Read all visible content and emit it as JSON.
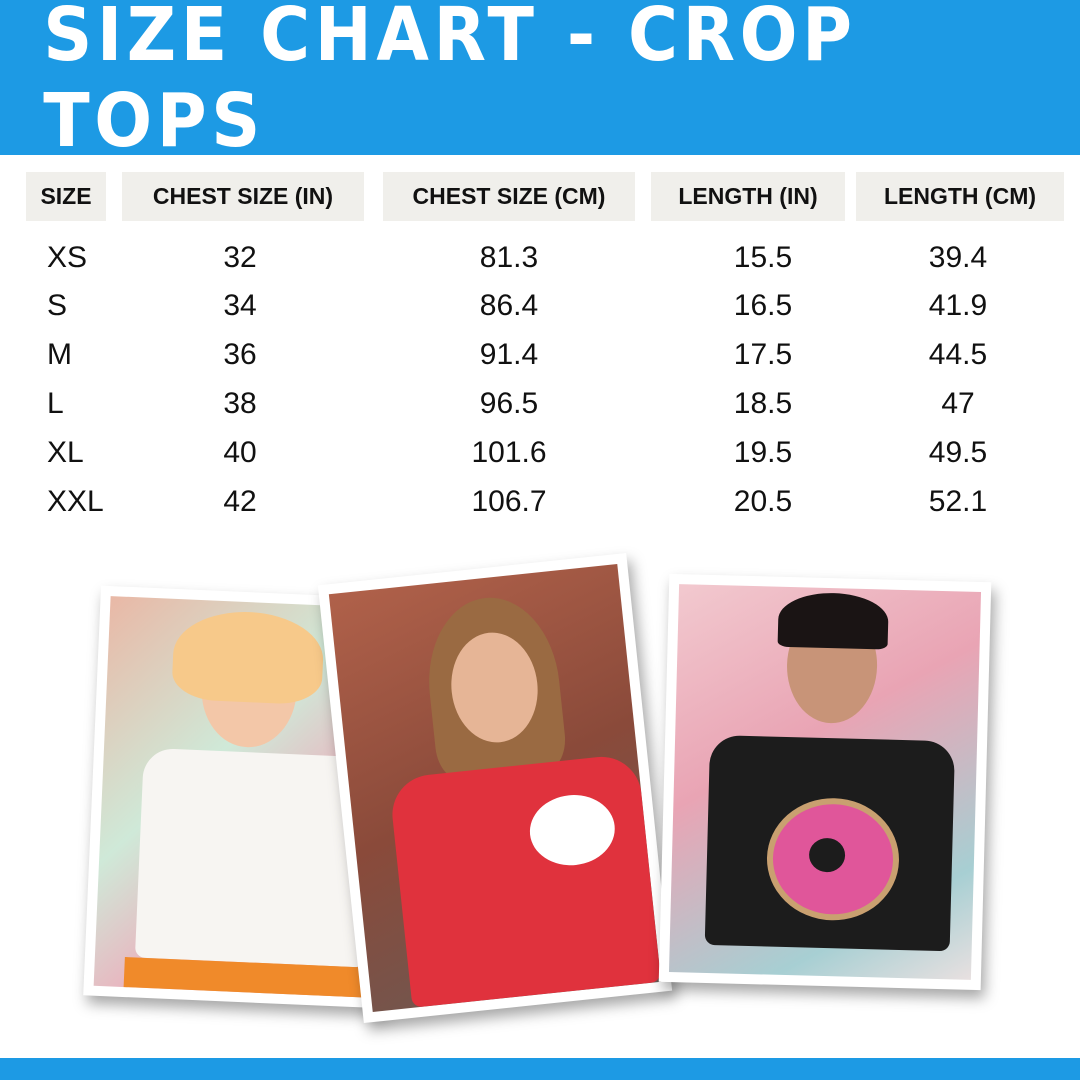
{
  "title": "SIZE CHART - CROP TOPS",
  "table": {
    "headers": [
      "SIZE",
      "CHEST SIZE (IN)",
      "CHEST SIZE (CM)",
      "LENGTH (IN)",
      "LENGTH (CM)"
    ],
    "rows": [
      [
        "XS",
        "32",
        "81.3",
        "15.5",
        "39.4"
      ],
      [
        "S",
        "34",
        "86.4",
        "16.5",
        "41.9"
      ],
      [
        "M",
        "36",
        "91.4",
        "17.5",
        "44.5"
      ],
      [
        "L",
        "38",
        "96.5",
        "18.5",
        "47"
      ],
      [
        "XL",
        "40",
        "101.6",
        "19.5",
        "49.5"
      ],
      [
        "XXL",
        "42",
        "106.7",
        "20.5",
        "52.1"
      ]
    ]
  },
  "colors": {
    "brand_blue": "#1d9ae4",
    "header_bg": "#f0efeb"
  },
  "photos": [
    {
      "name": "model-white-crop-top",
      "shirt_color": "#f7f5f2"
    },
    {
      "name": "model-red-crop-top",
      "shirt_color": "#e0323d"
    },
    {
      "name": "model-black-crop-top",
      "shirt_color": "#1c1c1c"
    }
  ]
}
